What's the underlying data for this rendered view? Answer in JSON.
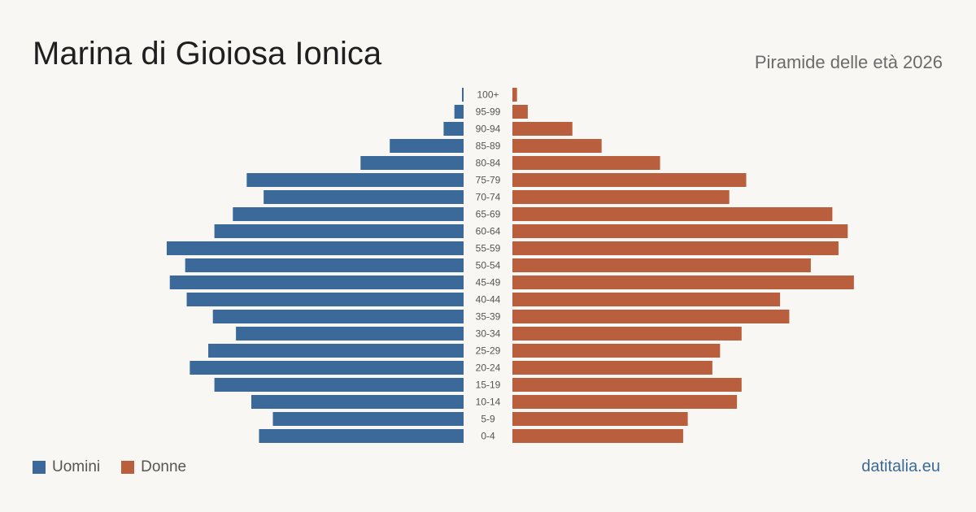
{
  "header": {
    "title": "Marina di Gioiosa Ionica",
    "subtitle": "Piramide delle età 2026"
  },
  "legend": {
    "men_label": "Uomini",
    "women_label": "Donne"
  },
  "footer": {
    "source": "datitalia.eu"
  },
  "colors": {
    "men": "#3b6a9a",
    "women": "#b95f3d",
    "background": "#f9f7f3"
  },
  "chart_data": {
    "type": "bar",
    "orientation": "horizontal-pyramid",
    "categories": [
      "100+",
      "95-99",
      "90-94",
      "85-89",
      "80-84",
      "75-79",
      "70-74",
      "65-69",
      "60-64",
      "55-59",
      "50-54",
      "45-49",
      "40-44",
      "35-39",
      "30-34",
      "25-29",
      "20-24",
      "15-19",
      "10-14",
      "5-9",
      "0-4"
    ],
    "series": [
      {
        "name": "Uomini",
        "values": [
          1,
          6,
          13,
          48,
          67,
          141,
          130,
          150,
          162,
          193,
          181,
          191,
          180,
          163,
          148,
          166,
          178,
          162,
          138,
          124,
          133
        ]
      },
      {
        "name": "Donne",
        "values": [
          3,
          10,
          39,
          58,
          96,
          152,
          141,
          208,
          218,
          212,
          194,
          222,
          174,
          180,
          149,
          135,
          130,
          149,
          146,
          114,
          111
        ]
      }
    ],
    "xlim": [
      0,
      230
    ],
    "grid": false,
    "legend_position": "bottom-left"
  }
}
